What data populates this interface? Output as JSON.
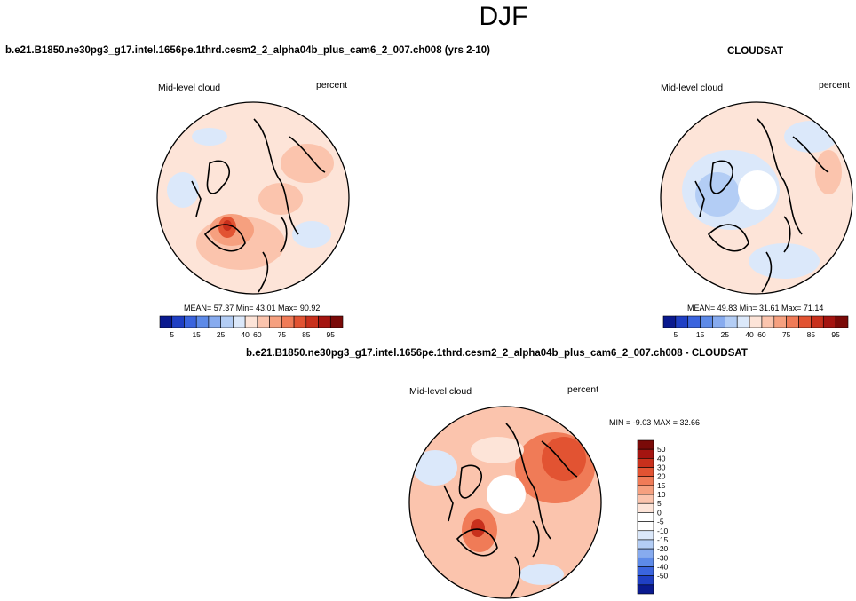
{
  "season": "DJF",
  "panels": {
    "model": {
      "title": "b.e21.B1850.ne30pg3_g17.intel.1656pe.1thrd.cesm2_2_alpha04b_plus_cam6_2_007.ch008 (yrs 2-10)",
      "variable": "Mid-level cloud",
      "units": "percent",
      "stats": "MEAN=  57.37  Min=  43.01  Max=  90.92"
    },
    "obs": {
      "title": "CLOUDSAT",
      "variable": "Mid-level cloud",
      "units": "percent",
      "stats": "MEAN=  49.83  Min=  31.61  Max=  71.14"
    },
    "diff": {
      "title": "b.e21.B1850.ne30pg3_g17.intel.1656pe.1thrd.cesm2_2_alpha04b_plus_cam6_2_007.ch008 - CLOUDSAT",
      "variable": "Mid-level cloud",
      "units": "percent",
      "stats": "MIN =  -9.03 MAX =  32.66"
    }
  },
  "colorbars": {
    "abs": {
      "colors": [
        "#0a1a8f",
        "#1f3fc4",
        "#3a64de",
        "#5d8ae8",
        "#87abef",
        "#b3cdf5",
        "#dbe8fa",
        "#fde4d8",
        "#fbc4ad",
        "#f6a07f",
        "#f07b57",
        "#e25332",
        "#c8301c",
        "#a41410",
        "#7a0a08"
      ],
      "labels": [
        "5",
        "15",
        "25",
        "40",
        "60",
        "75",
        "85",
        "95"
      ]
    },
    "diff": {
      "colors": [
        "#7a0a08",
        "#a41410",
        "#c8301c",
        "#e25332",
        "#f07b57",
        "#f6a07f",
        "#fbc4ad",
        "#fde4d8",
        "#ffffff",
        "#ffffff",
        "#dbe8fa",
        "#b3cdf5",
        "#87abef",
        "#5d8ae8",
        "#3a64de",
        "#1f3fc4",
        "#0a1a8f"
      ],
      "labels": [
        "50",
        "40",
        "30",
        "20",
        "15",
        "10",
        "5",
        "0",
        "-5",
        "-10",
        "-15",
        "-20",
        "-30",
        "-40",
        "-50"
      ]
    }
  },
  "map_colors": {
    "model_base": "#fde4d8",
    "obs_base": "#dbe8fa",
    "diff_base": "#fbc4ad",
    "coast": "#000000"
  }
}
